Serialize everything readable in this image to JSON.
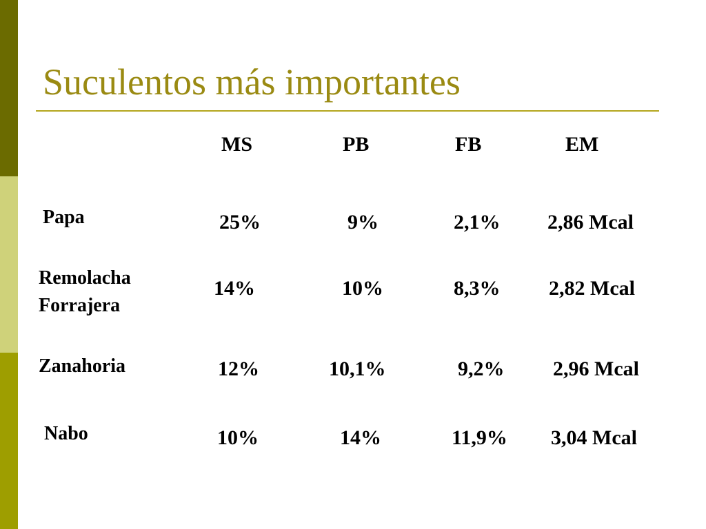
{
  "colors": {
    "sidebar_top": "#6b6b00",
    "sidebar_middle": "#cfd27a",
    "sidebar_bottom": "#9e9e00",
    "title": "#9a8a12",
    "title_rule": "#b3a51c"
  },
  "slide": {
    "title": "Suculentos más importantes"
  },
  "table": {
    "headers": [
      "MS",
      "PB",
      "FB",
      "EM"
    ],
    "rows": [
      {
        "label": "Papa",
        "values": [
          "25%",
          "9%",
          "2,1%",
          "2,86 Mcal"
        ]
      },
      {
        "label": "Remolacha\nForrajera",
        "label_lines": [
          "Remolacha",
          "Forrajera"
        ],
        "values": [
          "14%",
          "10%",
          "8,3%",
          "2,82 Mcal"
        ]
      },
      {
        "label": "Zanahoria",
        "values": [
          "12%",
          "10,1%",
          "9,2%",
          "2,96 Mcal"
        ]
      },
      {
        "label": "Nabo",
        "values": [
          "10%",
          "14%",
          "11,9%",
          "3,04 Mcal"
        ]
      }
    ]
  }
}
